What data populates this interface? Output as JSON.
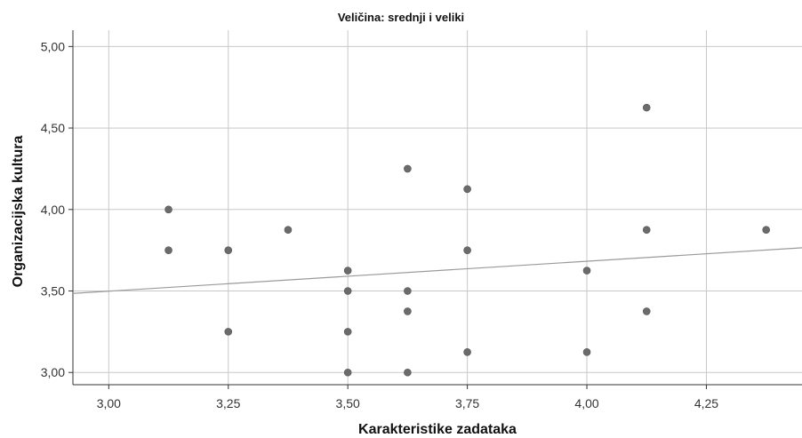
{
  "chart_data": {
    "type": "scatter",
    "title": "Veličina: srednji i veliki",
    "xlabel": "Karakteristike zadataka",
    "ylabel": "Organizacijska kultura",
    "xlim": [
      2.925,
      4.45
    ],
    "ylim": [
      2.925,
      5.1
    ],
    "x_ticks": [
      3.0,
      3.25,
      3.5,
      3.75,
      4.0,
      4.25
    ],
    "x_tick_labels": [
      "3,00",
      "3,25",
      "3,50",
      "3,75",
      "4,00",
      "4,25"
    ],
    "y_ticks": [
      3.0,
      3.5,
      4.0,
      4.5,
      5.0
    ],
    "y_tick_labels": [
      "3,00",
      "3,50",
      "4,00",
      "4,50",
      "5,00"
    ],
    "grid": true,
    "colors": {
      "point": "#6b6b6b",
      "fit_line": "#9a9a9a",
      "grid": "#c8c8c8",
      "axis": "#333333"
    },
    "points": [
      {
        "x": 3.125,
        "y": 4.0
      },
      {
        "x": 3.125,
        "y": 3.75
      },
      {
        "x": 3.25,
        "y": 3.75
      },
      {
        "x": 3.25,
        "y": 3.25
      },
      {
        "x": 3.375,
        "y": 3.875
      },
      {
        "x": 3.5,
        "y": 3.625
      },
      {
        "x": 3.5,
        "y": 3.5
      },
      {
        "x": 3.5,
        "y": 3.25
      },
      {
        "x": 3.5,
        "y": 3.0
      },
      {
        "x": 3.625,
        "y": 4.25
      },
      {
        "x": 3.625,
        "y": 3.5
      },
      {
        "x": 3.625,
        "y": 3.375
      },
      {
        "x": 3.625,
        "y": 3.0
      },
      {
        "x": 3.75,
        "y": 4.125
      },
      {
        "x": 3.75,
        "y": 3.75
      },
      {
        "x": 3.75,
        "y": 3.125
      },
      {
        "x": 4.0,
        "y": 3.625
      },
      {
        "x": 4.0,
        "y": 3.125
      },
      {
        "x": 4.125,
        "y": 4.625
      },
      {
        "x": 4.125,
        "y": 3.875
      },
      {
        "x": 4.125,
        "y": 3.375
      },
      {
        "x": 4.375,
        "y": 3.875
      }
    ],
    "fit_line": {
      "x": [
        2.925,
        4.45
      ],
      "y": [
        3.485,
        3.765
      ]
    }
  }
}
